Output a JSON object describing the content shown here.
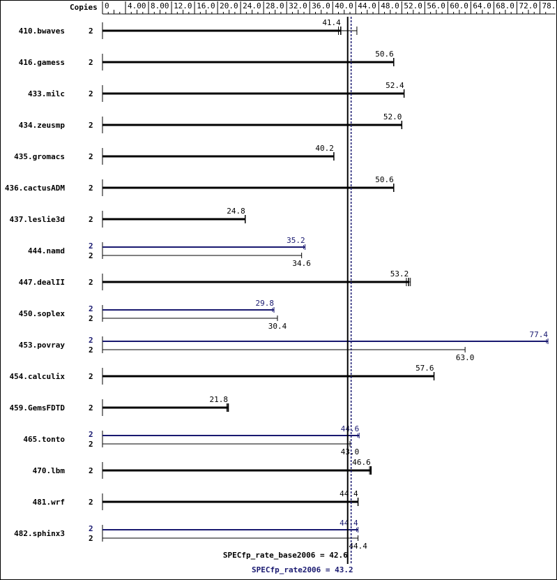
{
  "chart_data": {
    "type": "bar",
    "orientation": "horizontal",
    "copies_header": "Copies",
    "xlim": [
      0,
      78.0
    ],
    "x_ticks": [
      "0",
      "4.00",
      "8.00",
      "12.0",
      "16.0",
      "20.0",
      "24.0",
      "28.0",
      "32.0",
      "36.0",
      "40.0",
      "44.0",
      "48.0",
      "52.0",
      "56.0",
      "60.0",
      "64.0",
      "68.0",
      "72.0",
      "78.0"
    ],
    "colors": {
      "base": "#000000",
      "peak": "#191970"
    },
    "benchmarks": [
      {
        "name": "410.bwaves",
        "copies": "2",
        "base": 41.4,
        "spread": [
          41.0,
          44.2
        ]
      },
      {
        "name": "416.gamess",
        "copies": "2",
        "base": 50.6
      },
      {
        "name": "433.milc",
        "copies": "2",
        "base": 52.4
      },
      {
        "name": "434.zeusmp",
        "copies": "2",
        "base": 52.0
      },
      {
        "name": "435.gromacs",
        "copies": "2",
        "base": 40.2
      },
      {
        "name": "436.cactusADM",
        "copies": "2",
        "base": 50.6
      },
      {
        "name": "437.leslie3d",
        "copies": "2",
        "base": 24.8
      },
      {
        "name": "444.namd",
        "copies": "2",
        "copies_peak": "2",
        "peak": 35.2,
        "base": 34.6
      },
      {
        "name": "447.dealII",
        "copies": "2",
        "base": 53.2,
        "spread": [
          52.8,
          53.5
        ]
      },
      {
        "name": "450.soplex",
        "copies": "2",
        "copies_peak": "2",
        "peak": 29.8,
        "base": 30.4
      },
      {
        "name": "453.povray",
        "copies": "2",
        "copies_peak": "2",
        "peak": 77.4,
        "base": 63.0
      },
      {
        "name": "454.calculix",
        "copies": "2",
        "base": 57.6
      },
      {
        "name": "459.GemsFDTD",
        "copies": "2",
        "base": 21.8,
        "spread": [
          21.6,
          21.9
        ]
      },
      {
        "name": "465.tonto",
        "copies": "2",
        "copies_peak": "2",
        "peak": 44.6,
        "base": 43.0
      },
      {
        "name": "470.lbm",
        "copies": "2",
        "base": 46.6,
        "spread": [
          46.4,
          46.7
        ]
      },
      {
        "name": "481.wrf",
        "copies": "2",
        "base": 44.4
      },
      {
        "name": "482.sphinx3",
        "copies": "2",
        "copies_peak": "2",
        "peak": 44.4,
        "base": 44.4
      }
    ],
    "base_label_text": "44.4",
    "reference_lines": {
      "base": {
        "label": "SPECfp_rate_base2006 = 42.6",
        "value": 42.6
      },
      "peak": {
        "label": "SPECfp_rate2006 = 43.2",
        "value": 43.2
      }
    }
  }
}
